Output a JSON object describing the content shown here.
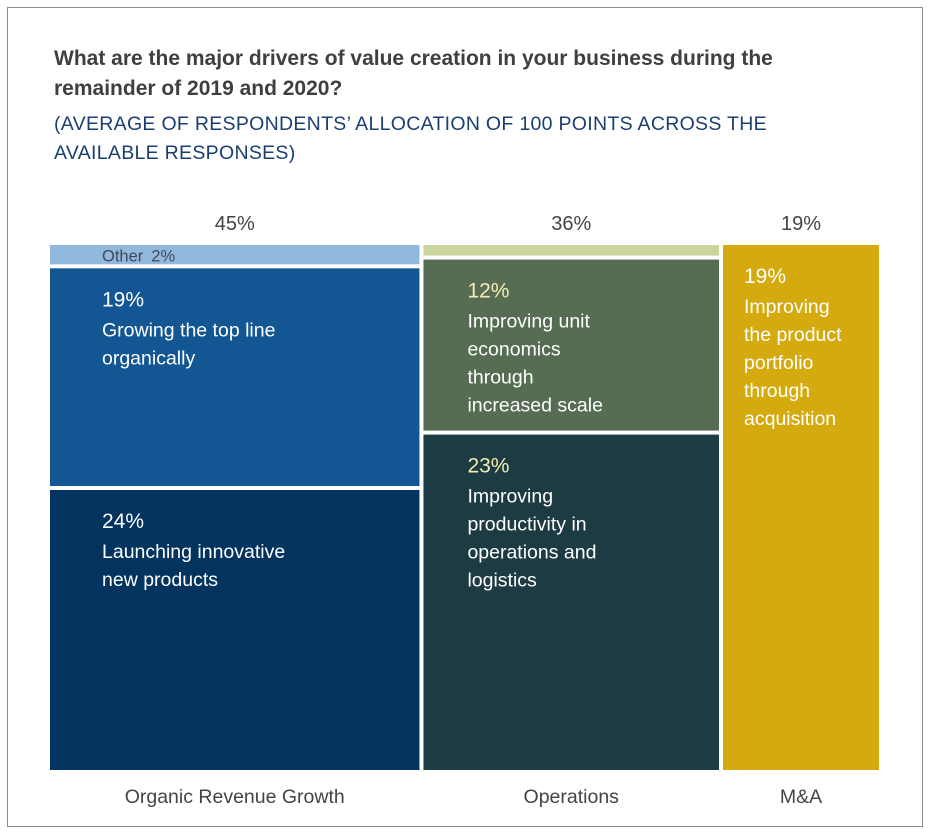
{
  "title": "What are the major drivers of value creation in your business during the remainder of 2019 and 2020?",
  "subtitle": "(AVERAGE OF RESPONDENTS’ ALLOCATION OF 100 POINTS ACROSS THE AVAILABLE RESPONSES)",
  "chart_data": {
    "type": "mekko",
    "title": "What are the major drivers of value creation in your business during the remainder of 2019 and 2020?",
    "subtitle": "(AVERAGE OF RESPONDENTS’ ALLOCATION OF 100 POINTS ACROSS THE AVAILABLE RESPONSES)",
    "unit": "%",
    "columns": [
      {
        "category": "Organic Revenue Growth",
        "total": 45,
        "total_label": "45%",
        "segments": [
          {
            "value": 2,
            "value_label": "2%",
            "label": "Other",
            "color": "#93b8de",
            "text_color": "#3d4a5c"
          },
          {
            "value": 19,
            "value_label": "19%",
            "label": "Growing the top line organically",
            "color": "#125694",
            "text_color": "#ffffff",
            "value_color": "#ffffff"
          },
          {
            "value": 24,
            "value_label": "24%",
            "label": "Launching innovative new products",
            "color": "#03335f",
            "text_color": "#ffffff",
            "value_color": "#ffffff"
          }
        ]
      },
      {
        "category": "Operations",
        "total": 36,
        "total_label": "36%",
        "segments": [
          {
            "value": 1,
            "value_label": "",
            "label": "",
            "color": "#c9d59c",
            "text_color": "#333333"
          },
          {
            "value": 12,
            "value_label": "12%",
            "label": "Improving unit economics through increased scale",
            "color": "#566d53",
            "text_color": "#ffffff",
            "value_color": "#f4ecb0"
          },
          {
            "value": 23,
            "value_label": "23%",
            "label": "Improving productivity in operations and logistics",
            "color": "#1c3b42",
            "text_color": "#ffffff",
            "value_color": "#f4ecb0"
          }
        ]
      },
      {
        "category": "M&A",
        "total": 19,
        "total_label": "19%",
        "segments": [
          {
            "value": 19,
            "value_label": "19%",
            "label": "Improving the product portfolio through acquisition",
            "color": "#d4aa0e",
            "text_color": "#ffffff",
            "value_color": "#ffffff"
          }
        ]
      }
    ]
  }
}
